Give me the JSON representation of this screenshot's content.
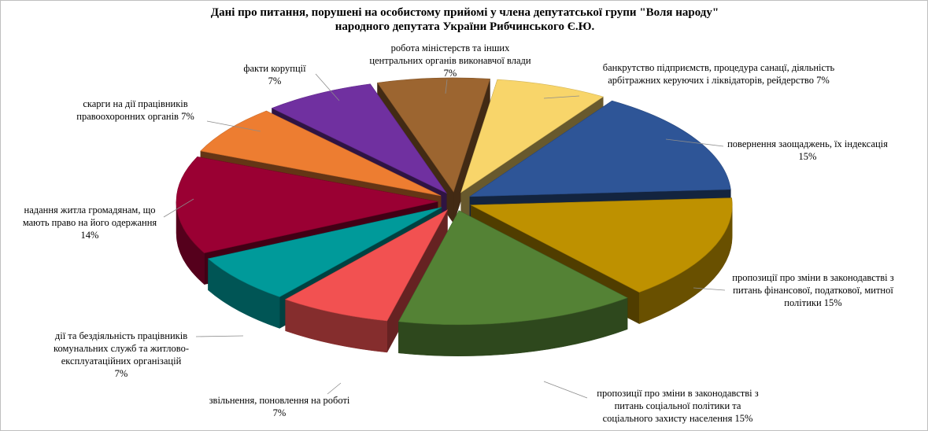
{
  "chart_data": {
    "type": "pie",
    "style": "3d-exploded",
    "title": "Дані про питання, порушені на особистому прийомі у члена депутатської групи \"Воля народу\"",
    "subtitle": "народного депутата України  Рибчинського Є.Ю.",
    "slices": [
      {
        "lines": [
          "банкрутство підприємств, процедура санацї, діяльність",
          "арбітражних керуючих і ліквідаторів,  рейдерство 7%"
        ],
        "value": 7,
        "color": "#f8d56a"
      },
      {
        "lines": [
          "повернення заощаджень, їх індексація",
          "15%"
        ],
        "value": 15,
        "color": "#2e5597"
      },
      {
        "lines": [
          "пропозиції про зміни в законодавстві  з",
          "питань фінансової, податкової,  митної",
          "політики  15%"
        ],
        "value": 15,
        "color": "#be9100"
      },
      {
        "lines": [
          "пропозиції про зміни в законодавстві  з",
          "питань соціальної політики  та",
          "соціального захисту  населення 15%"
        ],
        "value": 15,
        "color": "#548235"
      },
      {
        "lines": [
          "звільнення,  поновлення на роботі",
          "7%"
        ],
        "value": 7,
        "color": "#f25151"
      },
      {
        "lines": [
          "дії  та бездіяльність  працівників",
          "комунальних служб та житлово-",
          "експлуатаційних  організацій",
          "7%"
        ],
        "value": 7,
        "color": "#009a9a"
      },
      {
        "lines": [
          "надання житла  громадянам, що",
          "мають право на його одержання",
          "14%"
        ],
        "value": 14,
        "color": "#9a0033"
      },
      {
        "lines": [
          "скарги на дії  працівників",
          "правоохоронних  органів  7%"
        ],
        "value": 7,
        "color": "#ed7d31"
      },
      {
        "lines": [
          "факти корупції",
          "7%"
        ],
        "value": 7,
        "color": "#7030a0"
      },
      {
        "lines": [
          "робота міністерств  та інших",
          "центральних  органів виконавчої влади",
          "7%"
        ],
        "value": 7,
        "color": "#9c6530"
      }
    ]
  }
}
